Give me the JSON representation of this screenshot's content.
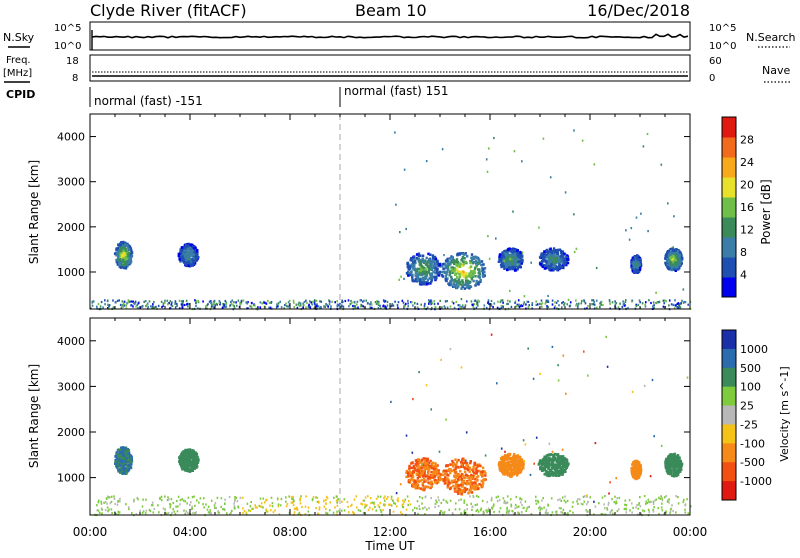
{
  "header": {
    "station": "Clyde River (fitACF)",
    "beam": "Beam 10",
    "date": "16/Dec/2018"
  },
  "noise_panel": {
    "left_label": "N.Sky",
    "left_ticks": [
      "10^5",
      "10^0"
    ],
    "right_ticks": [
      "10^5",
      "10^0"
    ],
    "right_label": "N.Search"
  },
  "freq_panel": {
    "left_label_1": "Freq.",
    "left_label_2": "[MHz]",
    "left_ticks": [
      "18",
      "8"
    ],
    "right_ticks": [
      "60",
      "0"
    ],
    "right_label": "Nave"
  },
  "cpid": {
    "label": "CPID",
    "segments": [
      "normal (fast) -151",
      "normal (fast) 151"
    ]
  },
  "colors": {
    "power": [
      "#0000ee",
      "#1f4fb0",
      "#3a7ea8",
      "#3a8a5a",
      "#6fbe4a",
      "#e7e12c",
      "#f7a81b",
      "#f26a1b",
      "#e01a10"
    ],
    "velocity": [
      "#1a2fa8",
      "#2a6cae",
      "#3a8a5a",
      "#7ecb3e",
      "#b8b8b8",
      "#f5c218",
      "#f58a18",
      "#f24f12",
      "#e01a10"
    ]
  },
  "chart_data": [
    {
      "type": "heatmap",
      "name": "Power",
      "xlabel": "",
      "ylabel": "Slant Range [km]",
      "x_ticks": [
        "00:00",
        "04:00",
        "08:00",
        "12:00",
        "16:00",
        "20:00",
        "00:00"
      ],
      "y_ticks": [
        "1000",
        "2000",
        "3000",
        "4000"
      ],
      "ylim": [
        180,
        4500
      ],
      "xlim_hours": [
        0,
        24
      ],
      "colorbar": {
        "label": "Power [dB]",
        "ticks": [
          "4",
          "8",
          "12",
          "16",
          "20",
          "24",
          "28"
        ],
        "range": [
          0,
          32
        ]
      },
      "blobs": [
        {
          "t": 1.3,
          "r": 1400,
          "dt": 0.35,
          "dr": 300,
          "v": 24
        },
        {
          "t": 3.9,
          "r": 1400,
          "dt": 0.4,
          "dr": 250,
          "v": 14
        },
        {
          "t": 13.3,
          "r": 1100,
          "dt": 0.7,
          "dr": 350,
          "v": 18
        },
        {
          "t": 14.9,
          "r": 1050,
          "dt": 0.9,
          "dr": 400,
          "v": 26
        },
        {
          "t": 16.8,
          "r": 1300,
          "dt": 0.5,
          "dr": 250,
          "v": 16
        },
        {
          "t": 18.5,
          "r": 1300,
          "dt": 0.6,
          "dr": 250,
          "v": 14
        },
        {
          "t": 21.8,
          "r": 1200,
          "dt": 0.2,
          "dr": 200,
          "v": 15
        },
        {
          "t": 23.3,
          "r": 1300,
          "dt": 0.35,
          "dr": 250,
          "v": 22
        }
      ]
    },
    {
      "type": "heatmap",
      "name": "Velocity",
      "xlabel": "Time UT",
      "ylabel": "Slant Range [km]",
      "x_ticks": [
        "00:00",
        "04:00",
        "08:00",
        "12:00",
        "16:00",
        "20:00",
        "00:00"
      ],
      "y_ticks": [
        "1000",
        "2000",
        "3000",
        "4000"
      ],
      "ylim": [
        180,
        4500
      ],
      "xlim_hours": [
        0,
        24
      ],
      "colorbar": {
        "label": "Velocity [m s^-1]",
        "ticks": [
          "1000",
          "500",
          "100",
          "25",
          "-25",
          "-100",
          "-500",
          "-1000"
        ]
      },
      "blobs": [
        {
          "t": 1.3,
          "r": 1400,
          "dt": 0.35,
          "dr": 300,
          "v": 500
        },
        {
          "t": 3.9,
          "r": 1400,
          "dt": 0.4,
          "dr": 250,
          "v": 300
        },
        {
          "t": 13.3,
          "r": 1100,
          "dt": 0.7,
          "dr": 350,
          "v": -500
        },
        {
          "t": 14.9,
          "r": 1050,
          "dt": 0.9,
          "dr": 400,
          "v": -500
        },
        {
          "t": 16.8,
          "r": 1300,
          "dt": 0.5,
          "dr": 250,
          "v": -300
        },
        {
          "t": 18.5,
          "r": 1300,
          "dt": 0.6,
          "dr": 250,
          "v": 200
        },
        {
          "t": 21.8,
          "r": 1200,
          "dt": 0.2,
          "dr": 200,
          "v": -200
        },
        {
          "t": 23.3,
          "r": 1300,
          "dt": 0.35,
          "dr": 250,
          "v": 300
        }
      ]
    }
  ]
}
